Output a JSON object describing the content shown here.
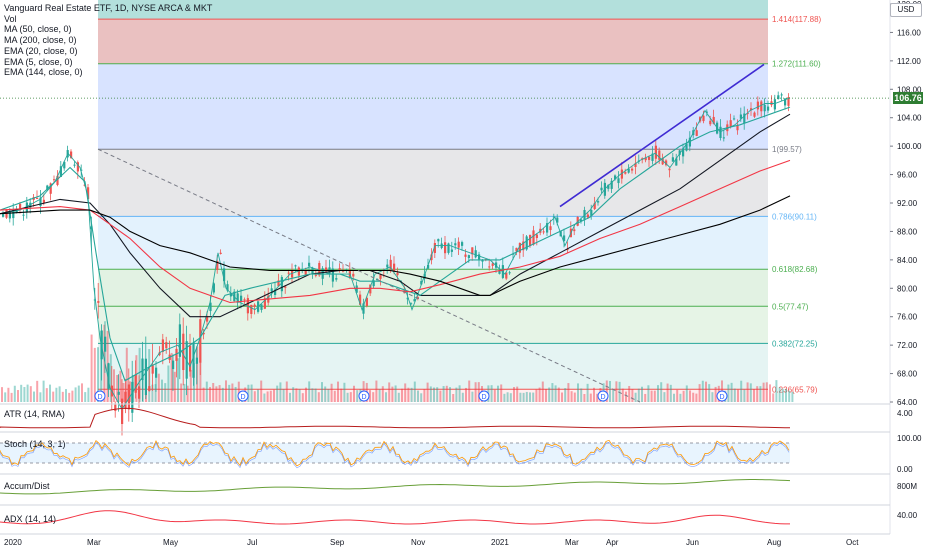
{
  "header": {
    "title": "Vanguard Real Estate ETF, 1D, NYSE ARCA & MKT",
    "vol_label": "Vol",
    "indicators": [
      "MA (50, close, 0)",
      "MA (200, close, 0)",
      "EMA (20, close, 0)",
      "EMA (5, close, 0)",
      "EMA (144, close, 0)"
    ]
  },
  "currency": "USD",
  "last_price": "106.76",
  "panes": {
    "atr": "ATR (14, RMA)",
    "stoch": "Stoch (14, 3, 1)",
    "accum": "Accum/Dist",
    "adx": "ADX (14, 14)"
  },
  "chart_data": {
    "type": "line",
    "title": "Vanguard Real Estate ETF, 1D, NYSE ARCA & MKT",
    "x_labels": [
      "2020",
      "Mar",
      "May",
      "Jul",
      "Sep",
      "Nov",
      "2021",
      "Mar",
      "Apr",
      "Jun",
      "Aug",
      "Oct"
    ],
    "y_ticks": [
      "120.00",
      "116.00",
      "112.00",
      "108.00",
      "104.00",
      "100.00",
      "96.00",
      "92.00",
      "88.00",
      "84.00",
      "80.00",
      "76.00",
      "72.00",
      "68.00",
      "64.00"
    ],
    "ylim": [
      64,
      120
    ],
    "fib_levels": [
      {
        "ratio": "1.414",
        "price": 117.88,
        "label": "1.414(117.88)",
        "color": "#ef5350"
      },
      {
        "ratio": "1.272",
        "price": 111.6,
        "label": "1.272(111.60)",
        "color": "#4caf50"
      },
      {
        "ratio": "1",
        "price": 99.57,
        "label": "1(99.57)",
        "color": "#787b86"
      },
      {
        "ratio": "0.786",
        "price": 90.11,
        "label": "0.786(90.11)",
        "color": "#64b5f6"
      },
      {
        "ratio": "0.618",
        "price": 82.68,
        "label": "0.618(82.68)",
        "color": "#4caf50"
      },
      {
        "ratio": "0.5",
        "price": 77.47,
        "label": "0.5(77.47)",
        "color": "#4caf50"
      },
      {
        "ratio": "0.382",
        "price": 72.25,
        "label": "0.382(72.25)",
        "color": "#26a69a"
      },
      {
        "ratio": "0.236",
        "price": 65.79,
        "label": "0.236(65.79)",
        "color": "#ef5350"
      }
    ],
    "series": [
      {
        "color": "#26a69a",
        "values": [
          [
            0,
            90.5
          ],
          [
            20,
            91
          ],
          [
            40,
            92.5
          ],
          [
            55,
            95
          ],
          [
            68,
            99
          ],
          [
            80,
            97
          ],
          [
            88,
            93
          ],
          [
            94,
            80
          ],
          [
            100,
            73
          ],
          [
            110,
            66
          ],
          [
            122,
            63
          ],
          [
            140,
            67
          ],
          [
            160,
            71
          ],
          [
            178,
            72
          ],
          [
            190,
            69
          ],
          [
            200,
            73
          ],
          [
            210,
            78
          ],
          [
            218,
            85
          ],
          [
            226,
            80
          ],
          [
            240,
            78
          ],
          [
            255,
            77
          ],
          [
            270,
            79
          ],
          [
            290,
            82
          ],
          [
            310,
            83
          ],
          [
            330,
            82
          ],
          [
            350,
            82
          ],
          [
            362,
            77
          ],
          [
            375,
            82
          ],
          [
            390,
            83
          ],
          [
            405,
            80
          ],
          [
            412,
            77
          ],
          [
            420,
            80
          ],
          [
            435,
            86
          ],
          [
            450,
            86
          ],
          [
            470,
            85
          ],
          [
            490,
            84
          ],
          [
            505,
            82
          ],
          [
            520,
            86
          ],
          [
            540,
            88
          ],
          [
            555,
            90
          ],
          [
            565,
            86
          ],
          [
            575,
            89
          ],
          [
            590,
            91
          ],
          [
            605,
            94
          ],
          [
            620,
            96
          ],
          [
            640,
            98
          ],
          [
            655,
            99
          ],
          [
            670,
            97
          ],
          [
            690,
            101
          ],
          [
            705,
            105
          ],
          [
            720,
            102
          ],
          [
            735,
            103
          ],
          [
            750,
            105
          ],
          [
            765,
            106
          ],
          [
            775,
            106
          ],
          [
            790,
            106.8
          ]
        ]
      },
      {
        "color": "#131722",
        "values": [
          [
            0,
            90.5
          ],
          [
            60,
            92.5
          ],
          [
            90,
            92
          ],
          [
            110,
            89
          ],
          [
            130,
            85
          ],
          [
            160,
            80
          ],
          [
            190,
            76
          ],
          [
            220,
            76
          ],
          [
            250,
            78
          ],
          [
            280,
            80
          ],
          [
            310,
            82
          ],
          [
            340,
            82.5
          ],
          [
            370,
            82.5
          ],
          [
            400,
            81
          ],
          [
            420,
            79
          ],
          [
            440,
            79
          ],
          [
            470,
            79
          ],
          [
            490,
            79
          ],
          [
            520,
            82
          ],
          [
            560,
            85
          ],
          [
            600,
            88
          ],
          [
            640,
            91
          ],
          [
            680,
            94
          ],
          [
            720,
            98
          ],
          [
            760,
            102
          ],
          [
            790,
            104.5
          ]
        ]
      },
      {
        "color": "#26a69a",
        "values": [
          [
            0,
            91
          ],
          [
            40,
            93
          ],
          [
            70,
            97
          ],
          [
            85,
            95
          ],
          [
            96,
            85
          ],
          [
            110,
            73
          ],
          [
            125,
            67
          ],
          [
            150,
            69
          ],
          [
            180,
            71
          ],
          [
            200,
            73
          ],
          [
            225,
            79
          ],
          [
            250,
            80
          ],
          [
            280,
            81
          ],
          [
            310,
            82
          ],
          [
            340,
            82
          ],
          [
            360,
            81
          ],
          [
            380,
            81
          ],
          [
            400,
            80
          ],
          [
            420,
            79
          ],
          [
            440,
            81
          ],
          [
            470,
            84
          ],
          [
            500,
            84
          ],
          [
            530,
            86
          ],
          [
            560,
            88
          ],
          [
            590,
            90
          ],
          [
            620,
            94
          ],
          [
            650,
            97
          ],
          [
            680,
            100
          ],
          [
            710,
            102
          ],
          [
            740,
            103
          ],
          [
            770,
            104.5
          ],
          [
            790,
            105.5
          ]
        ]
      },
      {
        "color": "#f23645",
        "values": [
          [
            0,
            91
          ],
          [
            60,
            91.5
          ],
          [
            90,
            91
          ],
          [
            110,
            89
          ],
          [
            130,
            87
          ],
          [
            160,
            83
          ],
          [
            190,
            80
          ],
          [
            230,
            78
          ],
          [
            270,
            78.5
          ],
          [
            310,
            79
          ],
          [
            350,
            80
          ],
          [
            380,
            80
          ],
          [
            410,
            79.5
          ],
          [
            440,
            80.5
          ],
          [
            480,
            82
          ],
          [
            520,
            83
          ],
          [
            560,
            84.5
          ],
          [
            600,
            87
          ],
          [
            640,
            89
          ],
          [
            680,
            91.5
          ],
          [
            720,
            94
          ],
          [
            760,
            96.5
          ],
          [
            790,
            98
          ]
        ]
      },
      {
        "color": "#000000",
        "values": [
          [
            0,
            90.5
          ],
          [
            60,
            91
          ],
          [
            90,
            91
          ],
          [
            110,
            90
          ],
          [
            130,
            88
          ],
          [
            160,
            86
          ],
          [
            190,
            85
          ],
          [
            230,
            83
          ],
          [
            270,
            82.5
          ],
          [
            310,
            82.5
          ],
          [
            350,
            82.5
          ],
          [
            390,
            82.5
          ],
          [
            410,
            82
          ],
          [
            440,
            81
          ],
          [
            480,
            79
          ],
          [
            490,
            79
          ],
          [
            520,
            81
          ],
          [
            560,
            83
          ],
          [
            600,
            84.5
          ],
          [
            640,
            86
          ],
          [
            680,
            87.5
          ],
          [
            720,
            89
          ],
          [
            760,
            91
          ],
          [
            790,
            93
          ]
        ]
      }
    ],
    "trend_line": {
      "from": [
        560,
        91.5
      ],
      "to": [
        764,
        111.5
      ],
      "color": "#3f2bd3"
    },
    "dividend_markers": [
      "D",
      "D",
      "D",
      "D",
      "D",
      "D"
    ],
    "volume_axis": [
      "4.00"
    ],
    "atr_axis": [
      "4.00"
    ],
    "stoch_axis": [
      "100.00",
      "0.00"
    ],
    "accum_axis": [
      "800M"
    ],
    "adx_axis": [
      "40.00"
    ]
  }
}
